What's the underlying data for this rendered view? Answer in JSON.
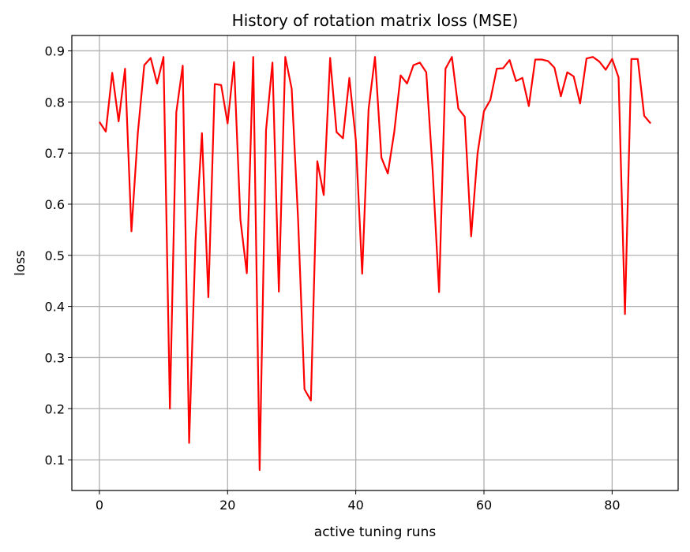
{
  "chart_data": {
    "type": "line",
    "title": "History of rotation matrix loss (MSE)",
    "xlabel": "active tuning runs",
    "ylabel": "loss",
    "xlim": [
      -4.3,
      90.3
    ],
    "ylim": [
      0.04,
      0.93
    ],
    "xticks": [
      0,
      20,
      40,
      60,
      80
    ],
    "yticks": [
      0.1,
      0.2,
      0.3,
      0.4,
      0.5,
      0.6,
      0.7,
      0.8,
      0.9
    ],
    "xtick_labels": [
      "0",
      "20",
      "40",
      "60",
      "80"
    ],
    "ytick_labels": [
      "0.1",
      "0.2",
      "0.3",
      "0.4",
      "0.5",
      "0.6",
      "0.7",
      "0.8",
      "0.9"
    ],
    "grid": true,
    "series": [
      {
        "color": "#ff0000",
        "x": [
          0,
          1,
          2,
          3,
          4,
          5,
          6,
          7,
          8,
          9,
          10,
          11,
          12,
          13,
          14,
          15,
          16,
          17,
          18,
          19,
          20,
          21,
          22,
          23,
          24,
          25,
          26,
          27,
          28,
          29,
          30,
          31,
          32,
          33,
          34,
          35,
          36,
          37,
          38,
          39,
          40,
          41,
          42,
          43,
          44,
          45,
          46,
          47,
          48,
          49,
          50,
          51,
          52,
          53,
          54,
          55,
          56,
          57,
          58,
          59,
          60,
          61,
          62,
          63,
          64,
          65,
          66,
          67,
          68,
          69,
          70,
          71,
          72,
          73,
          74,
          75,
          76,
          77,
          78,
          79,
          80,
          81,
          82,
          83,
          84,
          85,
          86
        ],
        "y": [
          0.761,
          0.742,
          0.857,
          0.762,
          0.865,
          0.547,
          0.74,
          0.872,
          0.886,
          0.836,
          0.888,
          0.2,
          0.78,
          0.871,
          0.133,
          0.53,
          0.739,
          0.418,
          0.835,
          0.833,
          0.758,
          0.878,
          0.57,
          0.465,
          0.888,
          0.08,
          0.745,
          0.877,
          0.429,
          0.888,
          0.826,
          0.57,
          0.238,
          0.216,
          0.684,
          0.618,
          0.886,
          0.741,
          0.729,
          0.847,
          0.727,
          0.464,
          0.786,
          0.888,
          0.691,
          0.66,
          0.741,
          0.852,
          0.836,
          0.872,
          0.877,
          0.858,
          0.665,
          0.428,
          0.865,
          0.888,
          0.787,
          0.771,
          0.537,
          0.699,
          0.782,
          0.804,
          0.865,
          0.866,
          0.882,
          0.841,
          0.847,
          0.792,
          0.883,
          0.883,
          0.88,
          0.867,
          0.811,
          0.858,
          0.85,
          0.797,
          0.885,
          0.888,
          0.879,
          0.863,
          0.884,
          0.848,
          0.385,
          0.884,
          0.884,
          0.773,
          0.758
        ]
      }
    ]
  }
}
